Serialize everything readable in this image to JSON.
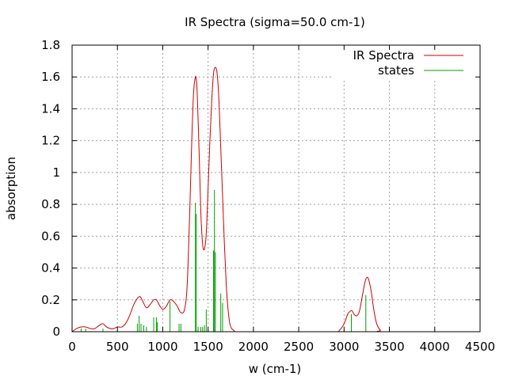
{
  "chart_data": {
    "type": "line",
    "title": "IR Spectra (sigma=50.0 cm-1)",
    "xlabel": "w (cm-1)",
    "ylabel": "absorption",
    "xlim": [
      0,
      4500
    ],
    "ylim": [
      0,
      1.8
    ],
    "x_ticks": [
      "0",
      "500",
      "1000",
      "1500",
      "2000",
      "2500",
      "3000",
      "3500",
      "4000",
      "4500"
    ],
    "y_ticks": [
      "0",
      "0.2",
      "0.4",
      "0.6",
      "0.8",
      "1",
      "1.2",
      "1.4",
      "1.6",
      "1.8"
    ],
    "grid": true,
    "legend_position": "top-right",
    "series": [
      {
        "name": "IR Spectra",
        "kind": "line",
        "color": "#cc0000",
        "x": [
          0,
          50,
          100,
          150,
          200,
          250,
          300,
          340,
          380,
          420,
          460,
          500,
          550,
          600,
          640,
          680,
          720,
          750,
          780,
          820,
          860,
          900,
          930,
          960,
          1000,
          1040,
          1080,
          1120,
          1160,
          1200,
          1240,
          1270,
          1300,
          1320,
          1340,
          1360,
          1370,
          1380,
          1400,
          1420,
          1440,
          1460,
          1480,
          1500,
          1520,
          1540,
          1560,
          1580,
          1600,
          1620,
          1640,
          1660,
          1680,
          1700,
          1720,
          1740,
          1760,
          1780,
          1800,
          1850,
          1900,
          2000,
          2500,
          2900,
          2950,
          3000,
          3040,
          3070,
          3090,
          3110,
          3140,
          3170,
          3200,
          3230,
          3250,
          3270,
          3300,
          3330,
          3360,
          3400,
          3450,
          4400
        ],
        "y": [
          0,
          0.02,
          0.03,
          0.03,
          0.02,
          0.02,
          0.04,
          0.05,
          0.03,
          0.02,
          0.02,
          0.03,
          0.03,
          0.06,
          0.11,
          0.17,
          0.21,
          0.22,
          0.19,
          0.15,
          0.17,
          0.2,
          0.2,
          0.17,
          0.14,
          0.16,
          0.2,
          0.19,
          0.16,
          0.12,
          0.14,
          0.3,
          0.8,
          1.2,
          1.5,
          1.6,
          1.58,
          1.5,
          1.15,
          0.75,
          0.55,
          0.52,
          0.62,
          0.9,
          1.2,
          1.45,
          1.62,
          1.66,
          1.62,
          1.45,
          1.15,
          0.85,
          0.55,
          0.3,
          0.14,
          0.05,
          0.02,
          0.01,
          0.0,
          0.0,
          0.0,
          0.0,
          0.0,
          0.0,
          0.01,
          0.05,
          0.11,
          0.13,
          0.13,
          0.11,
          0.1,
          0.13,
          0.22,
          0.31,
          0.34,
          0.33,
          0.25,
          0.13,
          0.05,
          0.01,
          0.0,
          0.0
        ]
      },
      {
        "name": "states",
        "kind": "impulse",
        "color": "#00a000",
        "x": [
          100,
          150,
          340,
          720,
          740,
          760,
          790,
          820,
          900,
          930,
          940,
          1080,
          1180,
          1200,
          1360,
          1370,
          1390,
          1420,
          1440,
          1460,
          1480,
          1560,
          1570,
          1580,
          1640,
          1660,
          3080,
          3240
        ],
        "y": [
          0.02,
          0.02,
          0.02,
          0.05,
          0.1,
          0.05,
          0.04,
          0.03,
          0.09,
          0.09,
          0.06,
          0.19,
          0.05,
          0.05,
          0.81,
          0.74,
          0.03,
          0.03,
          0.03,
          0.04,
          0.14,
          0.51,
          0.89,
          0.5,
          0.24,
          0.18,
          0.11,
          0.23
        ]
      }
    ]
  }
}
